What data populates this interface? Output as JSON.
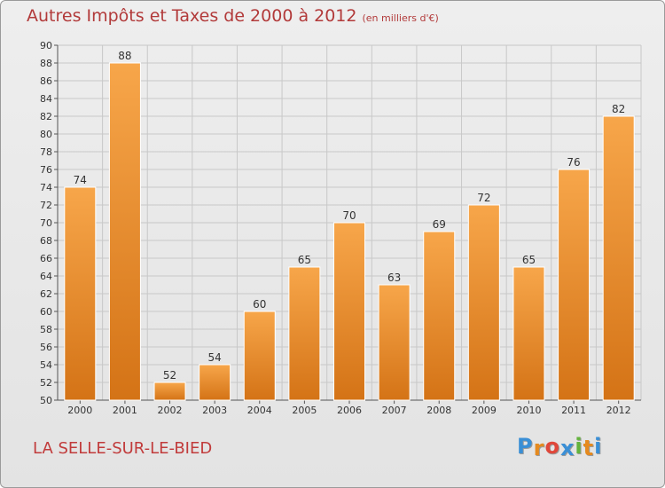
{
  "title": "Autres Impôts et Taxes de 2000 à 2012",
  "unit_label": "(en milliers d'€)",
  "place_name": "LA SELLE-SUR-LE-BIED",
  "logo": {
    "letters": [
      "P",
      "r",
      "o",
      "x",
      "i",
      "t",
      "i"
    ],
    "colors": [
      "#3a8fd6",
      "#e58a1f",
      "#e0473a",
      "#3a8fd6",
      "#63b33d",
      "#e58a1f",
      "#3a8fd6"
    ]
  },
  "colors": {
    "bar_light": "#f7a64a",
    "bar_dark": "#d47316",
    "title": "#b23a3a",
    "grid": "#c8c8c8"
  },
  "chart_data": {
    "type": "bar",
    "categories": [
      "2000",
      "2001",
      "2002",
      "2003",
      "2004",
      "2005",
      "2006",
      "2007",
      "2008",
      "2009",
      "2010",
      "2011",
      "2012"
    ],
    "values": [
      74,
      88,
      52,
      54,
      60,
      65,
      70,
      63,
      69,
      72,
      65,
      76,
      82
    ],
    "ylim": [
      50,
      90
    ],
    "yticks": [
      50,
      52,
      54,
      56,
      58,
      60,
      62,
      64,
      66,
      68,
      70,
      72,
      74,
      76,
      78,
      80,
      82,
      84,
      86,
      88,
      90
    ],
    "grid": true
  }
}
